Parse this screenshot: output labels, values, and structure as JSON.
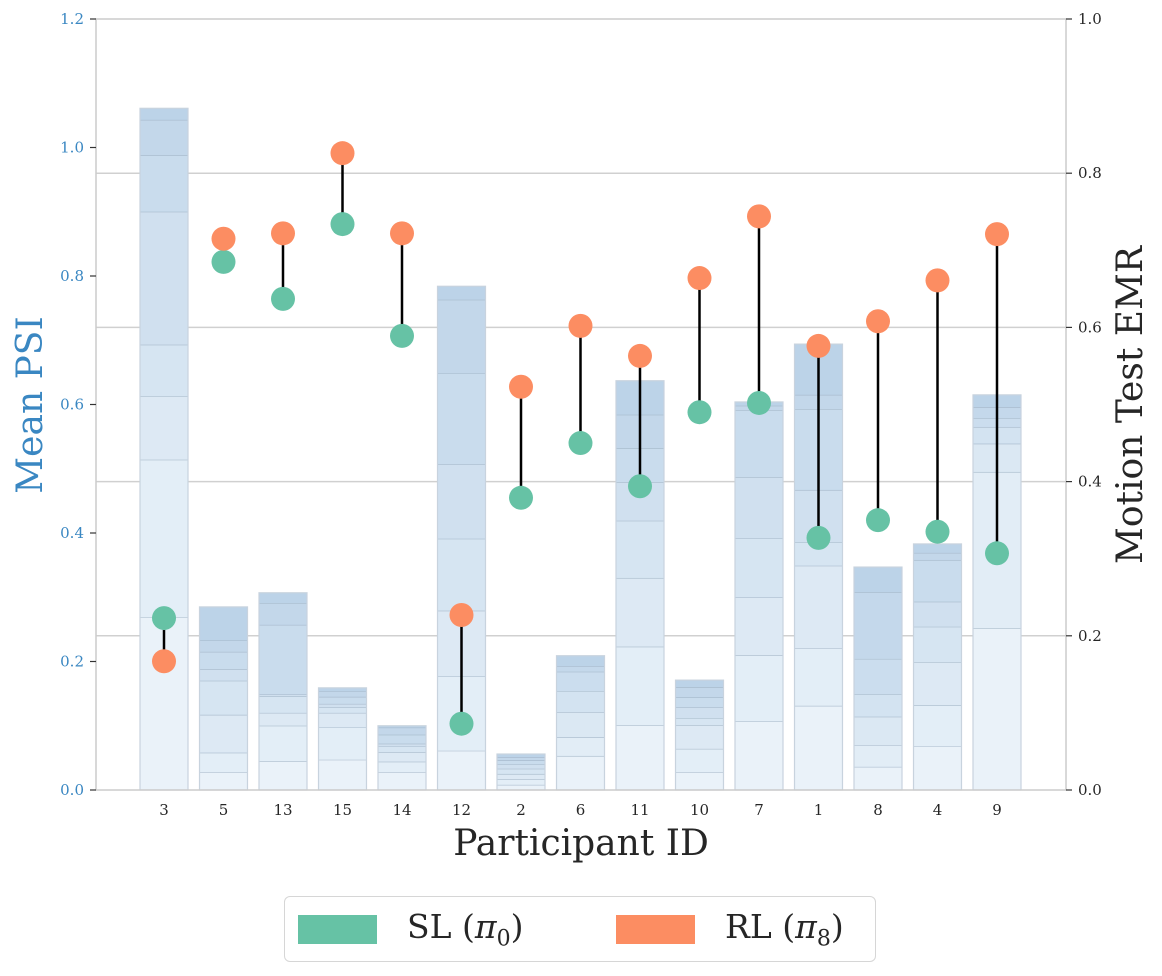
{
  "chart_data": {
    "type": "bar",
    "title": "",
    "xlabel": "Participant ID",
    "ylabel_left": "Mean PSI",
    "ylabel_right": "Motion Test EMR",
    "ylim_left": [
      0,
      1.2
    ],
    "ylim_right": [
      0,
      1.0
    ],
    "yticks_left": [
      "0.0",
      "0.2",
      "0.4",
      "0.6",
      "0.8",
      "1.0",
      "1.2"
    ],
    "yticks_right": [
      "0.0",
      "0.2",
      "0.4",
      "0.6",
      "0.8",
      "1.0"
    ],
    "grid": "horizontal, right axis",
    "legend_placement": "bottom-center",
    "categories": [
      "3",
      "5",
      "13",
      "15",
      "14",
      "12",
      "2",
      "6",
      "11",
      "10",
      "7",
      "1",
      "8",
      "4",
      "9"
    ],
    "bars_mean_psi": [
      1.061,
      0.285,
      0.307,
      0.159,
      0.1,
      0.784,
      0.056,
      0.209,
      0.637,
      0.171,
      0.604,
      0.694,
      0.347,
      0.383,
      0.615
    ],
    "bar_stack_boundaries": [
      [
        0.269,
        0.514,
        0.613,
        0.693,
        0.9,
        0.988,
        1.043,
        1.061
      ],
      [
        0.028,
        0.058,
        0.117,
        0.17,
        0.188,
        0.215,
        0.233,
        0.285
      ],
      [
        0.045,
        0.1,
        0.12,
        0.146,
        0.149,
        0.257,
        0.291,
        0.307
      ],
      [
        0.047,
        0.098,
        0.12,
        0.129,
        0.134,
        0.145,
        0.154,
        0.159
      ],
      [
        0.028,
        0.044,
        0.059,
        0.068,
        0.072,
        0.086,
        0.097,
        0.1
      ],
      [
        0.061,
        0.177,
        0.279,
        0.391,
        0.507,
        0.649,
        0.763,
        0.784
      ],
      [
        0.008,
        0.017,
        0.025,
        0.033,
        0.04,
        0.046,
        0.051,
        0.056
      ],
      [
        0.053,
        0.082,
        0.121,
        0.154,
        0.184,
        0.193,
        0.209
      ],
      [
        0.101,
        0.223,
        0.33,
        0.419,
        0.479,
        0.532,
        0.584,
        0.637
      ],
      [
        0.028,
        0.064,
        0.101,
        0.112,
        0.129,
        0.144,
        0.16,
        0.171
      ],
      [
        0.107,
        0.21,
        0.3,
        0.392,
        0.487,
        0.591,
        0.598,
        0.604
      ],
      [
        0.131,
        0.221,
        0.349,
        0.386,
        0.467,
        0.593,
        0.615,
        0.694
      ],
      [
        0.036,
        0.07,
        0.114,
        0.149,
        0.204,
        0.308,
        0.347
      ],
      [
        0.068,
        0.132,
        0.199,
        0.254,
        0.293,
        0.358,
        0.369,
        0.383
      ],
      [
        0.252,
        0.495,
        0.539,
        0.565,
        0.579,
        0.596,
        0.615
      ]
    ],
    "series": [
      {
        "name": "SL (π0)",
        "axis": "right",
        "color": "#66c2a5",
        "values": [
          0.223,
          0.685,
          0.637,
          0.734,
          0.589,
          0.086,
          0.379,
          0.45,
          0.394,
          0.49,
          0.502,
          0.327,
          0.35,
          0.335,
          0.307
        ]
      },
      {
        "name": "RL (π8)",
        "axis": "right",
        "color": "#fc8d62",
        "values": [
          0.167,
          0.715,
          0.722,
          0.826,
          0.722,
          0.227,
          0.523,
          0.602,
          0.563,
          0.664,
          0.744,
          0.576,
          0.608,
          0.661,
          0.721
        ]
      }
    ],
    "colors": {
      "left_axis": "#3a87c2",
      "bar_light": "#eaf2f9",
      "bar_dark": "#bcd3e8",
      "bar_edge": "#9fb2c4",
      "connector": "#000000",
      "grid": "#d0d0d0"
    }
  },
  "legend": {
    "items": [
      {
        "label": "SL (",
        "symbol": "π",
        "sub": "0",
        "close": ")",
        "color": "#66c2a5"
      },
      {
        "label": "RL (",
        "symbol": "π",
        "sub": "8",
        "close": ")",
        "color": "#fc8d62"
      }
    ]
  }
}
